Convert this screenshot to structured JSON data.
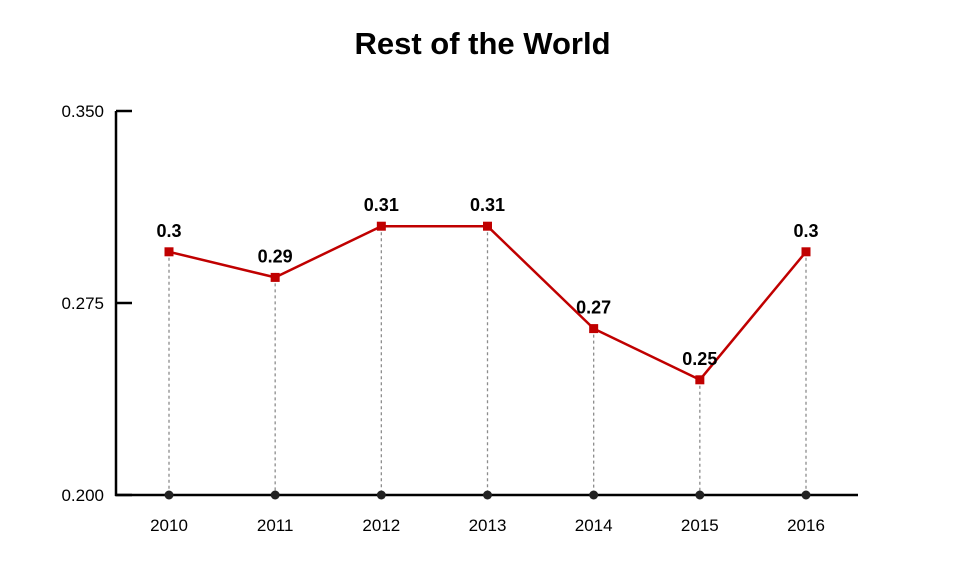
{
  "chart_data": {
    "type": "line",
    "title": "Rest of the World",
    "xlabel": "",
    "ylabel": "",
    "categories": [
      "2010",
      "2011",
      "2012",
      "2013",
      "2014",
      "2015",
      "2016"
    ],
    "series": [
      {
        "values": [
          0.295,
          0.285,
          0.305,
          0.305,
          0.265,
          0.245,
          0.295
        ],
        "data_labels": [
          "0.3",
          "0.29",
          "0.31",
          "0.31",
          "0.27",
          "0.25",
          "0.3"
        ],
        "color": "#c00000"
      }
    ],
    "ylim": [
      0.2,
      0.35
    ],
    "y_ticks": [
      "0.350",
      "0.275",
      "0.200"
    ],
    "y_tick_values": [
      0.35,
      0.275,
      0.2
    ],
    "grid": false,
    "drop_lines": true,
    "axis_color": "#000000",
    "marker": "square"
  }
}
